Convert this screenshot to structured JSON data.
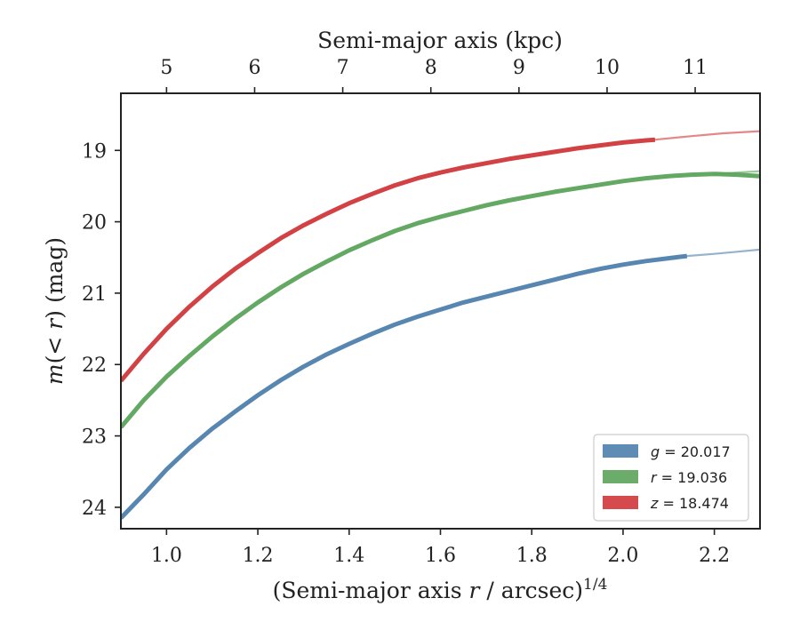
{
  "chart_data": {
    "type": "line",
    "xlabel": "(Semi-major axis",
    "xlabel_var": "r",
    "xlabel_unit": "/ arcsec)",
    "xlabel_exp": "1/4",
    "ylabel_m": "m",
    "ylabel_mid": "(< ",
    "ylabel_r": "r",
    "ylabel_end": ") (mag)",
    "top_xlabel": "Semi-major axis (kpc)",
    "xlim": [
      0.9,
      2.3
    ],
    "ylim": [
      24.3,
      18.2
    ],
    "y_inverted": true,
    "x_ticks": [
      "1.0",
      "1.2",
      "1.4",
      "1.6",
      "1.8",
      "2.0",
      "2.2"
    ],
    "y_ticks": [
      "19",
      "20",
      "21",
      "22",
      "23",
      "24"
    ],
    "top_ticks": [
      {
        "label": "5",
        "x": 1.0
      },
      {
        "label": "6",
        "x": 1.193
      },
      {
        "label": "7",
        "x": 1.386
      },
      {
        "label": "8",
        "x": 1.579
      },
      {
        "label": "9",
        "x": 1.772
      },
      {
        "label": "10",
        "x": 1.965
      },
      {
        "label": "11",
        "x": 2.158
      }
    ],
    "grid": false,
    "legend_position": "lower-right",
    "series": [
      {
        "name_var": "g",
        "name_val": "= 20.017",
        "color": "#4e7fad",
        "points": [
          [
            0.9,
            24.15
          ],
          [
            0.95,
            23.82
          ],
          [
            1.0,
            23.47
          ],
          [
            1.05,
            23.17
          ],
          [
            1.1,
            22.9
          ],
          [
            1.15,
            22.66
          ],
          [
            1.2,
            22.43
          ],
          [
            1.25,
            22.22
          ],
          [
            1.3,
            22.03
          ],
          [
            1.35,
            21.86
          ],
          [
            1.4,
            21.71
          ],
          [
            1.45,
            21.57
          ],
          [
            1.5,
            21.44
          ],
          [
            1.55,
            21.33
          ],
          [
            1.6,
            21.23
          ],
          [
            1.65,
            21.13
          ],
          [
            1.7,
            21.05
          ],
          [
            1.75,
            20.97
          ],
          [
            1.8,
            20.89
          ],
          [
            1.85,
            20.81
          ],
          [
            1.9,
            20.73
          ],
          [
            1.95,
            20.66
          ],
          [
            2.0,
            20.6
          ],
          [
            2.05,
            20.55
          ],
          [
            2.1,
            20.51
          ],
          [
            2.14,
            20.48
          ]
        ],
        "extension": [
          [
            2.14,
            20.48
          ],
          [
            2.2,
            20.45
          ],
          [
            2.25,
            20.42
          ],
          [
            2.3,
            20.39
          ]
        ]
      },
      {
        "name_var": "r",
        "name_val": "= 19.036",
        "color": "#5ba35b",
        "points": [
          [
            0.9,
            22.88
          ],
          [
            0.95,
            22.5
          ],
          [
            1.0,
            22.17
          ],
          [
            1.05,
            21.88
          ],
          [
            1.1,
            21.61
          ],
          [
            1.15,
            21.36
          ],
          [
            1.2,
            21.13
          ],
          [
            1.25,
            20.92
          ],
          [
            1.3,
            20.73
          ],
          [
            1.35,
            20.56
          ],
          [
            1.4,
            20.4
          ],
          [
            1.45,
            20.26
          ],
          [
            1.5,
            20.13
          ],
          [
            1.55,
            20.02
          ],
          [
            1.6,
            19.93
          ],
          [
            1.65,
            19.85
          ],
          [
            1.7,
            19.77
          ],
          [
            1.75,
            19.7
          ],
          [
            1.8,
            19.64
          ],
          [
            1.85,
            19.58
          ],
          [
            1.9,
            19.53
          ],
          [
            1.95,
            19.48
          ],
          [
            2.0,
            19.43
          ],
          [
            2.05,
            19.39
          ],
          [
            2.1,
            19.36
          ],
          [
            2.15,
            19.34
          ],
          [
            2.2,
            19.33
          ],
          [
            2.25,
            19.34
          ],
          [
            2.3,
            19.36
          ]
        ],
        "extension": [
          [
            2.2,
            19.33
          ],
          [
            2.25,
            19.31
          ],
          [
            2.3,
            19.29
          ]
        ]
      },
      {
        "name_var": "z",
        "name_val": "= 18.474",
        "color": "#d0373a",
        "points": [
          [
            0.9,
            22.23
          ],
          [
            0.95,
            21.85
          ],
          [
            1.0,
            21.5
          ],
          [
            1.05,
            21.19
          ],
          [
            1.1,
            20.91
          ],
          [
            1.15,
            20.66
          ],
          [
            1.2,
            20.44
          ],
          [
            1.25,
            20.23
          ],
          [
            1.3,
            20.05
          ],
          [
            1.35,
            19.89
          ],
          [
            1.4,
            19.74
          ],
          [
            1.45,
            19.61
          ],
          [
            1.5,
            19.49
          ],
          [
            1.55,
            19.39
          ],
          [
            1.6,
            19.31
          ],
          [
            1.65,
            19.24
          ],
          [
            1.7,
            19.18
          ],
          [
            1.75,
            19.12
          ],
          [
            1.8,
            19.07
          ],
          [
            1.85,
            19.02
          ],
          [
            1.9,
            18.97
          ],
          [
            1.95,
            18.93
          ],
          [
            2.0,
            18.89
          ],
          [
            2.05,
            18.86
          ],
          [
            2.07,
            18.85
          ]
        ],
        "extension": [
          [
            2.07,
            18.85
          ],
          [
            2.15,
            18.8
          ],
          [
            2.22,
            18.76
          ],
          [
            2.3,
            18.73
          ]
        ]
      }
    ]
  }
}
